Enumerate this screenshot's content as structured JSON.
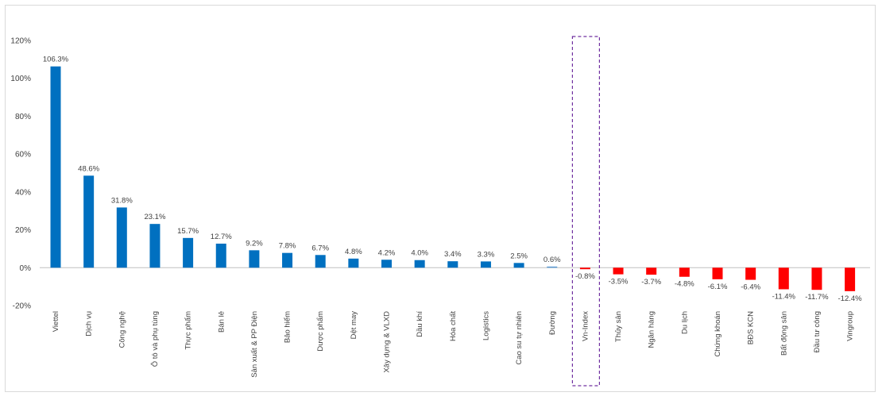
{
  "chart_data": {
    "type": "bar",
    "title": "",
    "xlabel": "",
    "ylabel": "",
    "ylim": [
      -0.2,
      1.2
    ],
    "yticks": [
      {
        "value": 1.2,
        "label": "120%"
      },
      {
        "value": 1.0,
        "label": "100%"
      },
      {
        "value": 0.8,
        "label": "80%"
      },
      {
        "value": 0.6,
        "label": "60%"
      },
      {
        "value": 0.4,
        "label": "40%"
      },
      {
        "value": 0.2,
        "label": "20%"
      },
      {
        "value": 0.0,
        "label": "0%"
      },
      {
        "value": -0.2,
        "label": "-20%"
      }
    ],
    "categories": [
      "Viettel",
      "Dịch vụ",
      "Công nghệ",
      "Ô tô và phụ tùng",
      "Thực phẩm",
      "Bán lẻ",
      "Sản xuất & PP Điện",
      "Bảo hiểm",
      "Dược phẩm",
      "Dệt may",
      "Xây dựng & VLXD",
      "Dầu khí",
      "Hóa chất",
      "Logistics",
      "Cao su tự nhiên",
      "Đường",
      "Vn-Index",
      "Thủy sản",
      "Ngân hàng",
      "Du lịch",
      "Chứng khoán",
      "BĐS KCN",
      "Bất động sản",
      "Đầu tư công",
      "Vingroup"
    ],
    "values": [
      1.063,
      0.486,
      0.318,
      0.231,
      0.157,
      0.127,
      0.092,
      0.078,
      0.067,
      0.048,
      0.042,
      0.04,
      0.034,
      0.033,
      0.025,
      0.006,
      -0.008,
      -0.035,
      -0.037,
      -0.048,
      -0.061,
      -0.064,
      -0.114,
      -0.117,
      -0.124
    ],
    "labels": [
      "106.3%",
      "48.6%",
      "31.8%",
      "23.1%",
      "15.7%",
      "12.7%",
      "9.2%",
      "7.8%",
      "6.7%",
      "4.8%",
      "4.2%",
      "4.0%",
      "3.4%",
      "3.3%",
      "2.5%",
      "0.6%",
      "-0.8%",
      "-3.5%",
      "-3.7%",
      "-4.8%",
      "-6.1%",
      "-6.4%",
      "-11.4%",
      "-11.7%",
      "-12.4%"
    ],
    "highlight_category": "Vn-Index",
    "grid": false,
    "legend": "none",
    "colors": {
      "positive": "#0070c0",
      "small_positive": "#5b9bd5",
      "negative": "#ff0000",
      "highlight_box": "#7030a0",
      "axis": "#bfbfbf",
      "text": "#404040"
    }
  }
}
